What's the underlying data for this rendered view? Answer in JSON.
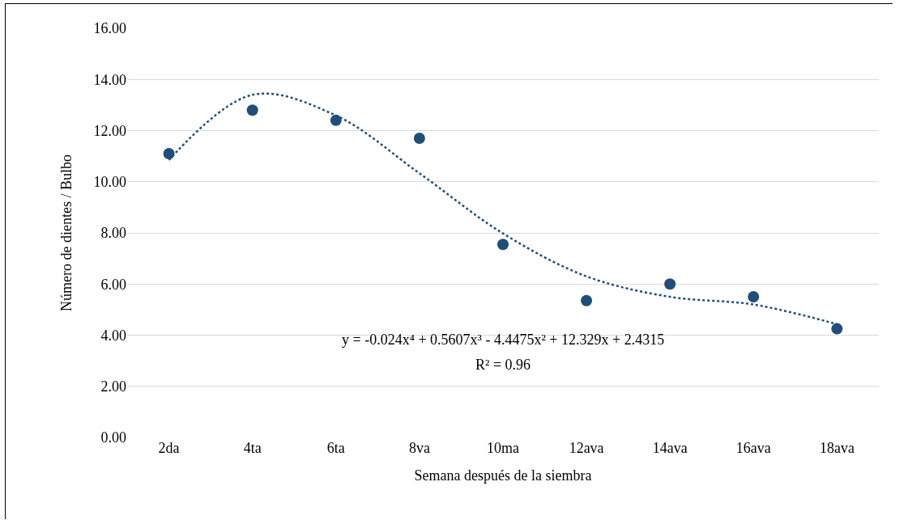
{
  "chart_data": {
    "type": "scatter",
    "xlabel": "Semana después de la siembra",
    "ylabel": "Número de dientes / Bulbo",
    "categories": [
      "2da",
      "4ta",
      "6ta",
      "8va",
      "10ma",
      "12ava",
      "14ava",
      "16ava",
      "18ava"
    ],
    "series": [
      {
        "color": "#1f4e79",
        "marker": "circle",
        "values": [
          11.1,
          12.8,
          12.4,
          11.7,
          7.55,
          5.35,
          6.0,
          5.5,
          4.25
        ]
      },
      {
        "type": "line",
        "color": "#1f4e79",
        "line_style": "dotted",
        "marker": "none",
        "values": [
          10.85,
          13.4,
          12.59,
          10.33,
          7.98,
          6.3,
          5.5,
          5.2,
          4.43
        ]
      }
    ],
    "ylim": [
      0,
      16
    ],
    "yticks": [
      {
        "value": 0,
        "label": "0.00"
      },
      {
        "value": 2,
        "label": "2.00"
      },
      {
        "value": 4,
        "label": "4.00"
      },
      {
        "value": 6,
        "label": "6.00"
      },
      {
        "value": 8,
        "label": "8.00"
      },
      {
        "value": 10,
        "label": "10.00"
      },
      {
        "value": 12,
        "label": "12.00"
      },
      {
        "value": 14,
        "label": "14.00"
      },
      {
        "value": 16,
        "label": "16.00"
      }
    ],
    "grid": "y",
    "annotations": [
      "y = -0.024x⁴ + 0.5607x³ - 4.4475x² + 12.329x + 2.4315",
      "R² = 0.96"
    ]
  }
}
